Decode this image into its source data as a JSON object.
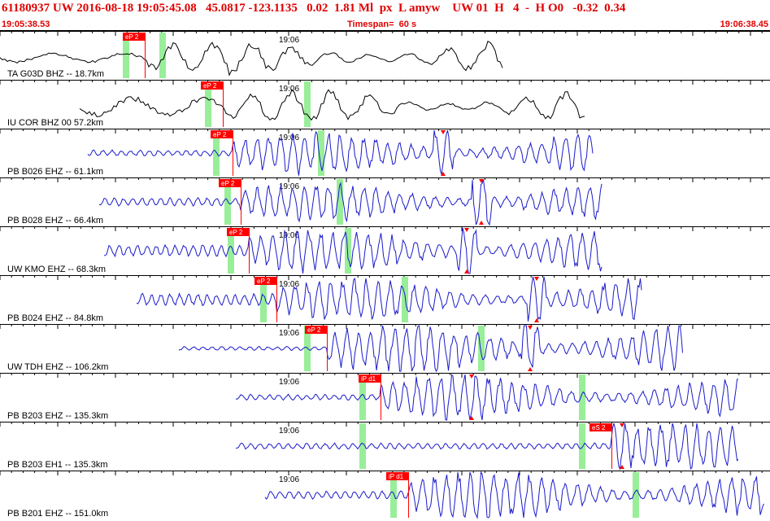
{
  "header": {
    "title": "61180937 UW 2016-08-18 19:05:45.08   45.0817 -123.1135   0.02  1.81 Ml  px  L amyw    UW 01  H   4  -  H O0   -0.32  0.34",
    "start_time": "19:05:38.53",
    "timespan": "Timespan=  60 s",
    "end_time": "19:06:38.45"
  },
  "minute_label": "19:06",
  "colors": {
    "waveform_vertical_short": "#000000",
    "waveform": "#1a1acc",
    "pick_flag": "#ff0000",
    "pick_window": "#99ee99",
    "text": "#000000",
    "header_text": "#e00000"
  },
  "traces": [
    {
      "label": "TA G03D BHZ -- 18.7km",
      "pick": "eP 2",
      "color": "black"
    },
    {
      "label": "IU COR BHZ 00 57.2km",
      "pick": "eP 2",
      "color": "black"
    },
    {
      "label": "PB B026 EHZ -- 61.1km",
      "pick": "eP 2",
      "color": "blue"
    },
    {
      "label": "PB B028 EHZ -- 66.4km",
      "pick": "eP 2",
      "color": "blue"
    },
    {
      "label": "UW KMO EHZ -- 68.3km",
      "pick": "eP 2",
      "color": "blue"
    },
    {
      "label": "PB B024 EHZ -- 84.8km",
      "pick": "eP 2",
      "color": "blue"
    },
    {
      "label": "UW TDH EHZ -- 106.2km",
      "pick": "eP 2",
      "color": "blue"
    },
    {
      "label": "PB B203 EHZ -- 135.3km",
      "pick": "iP d1",
      "color": "blue"
    },
    {
      "label": "PB B203 EH1 -- 135.3km",
      "pick": "eS 2",
      "color": "blue"
    },
    {
      "label": "PB B201 EHZ -- 151.0km",
      "pick": "iP d1",
      "color": "blue"
    }
  ]
}
